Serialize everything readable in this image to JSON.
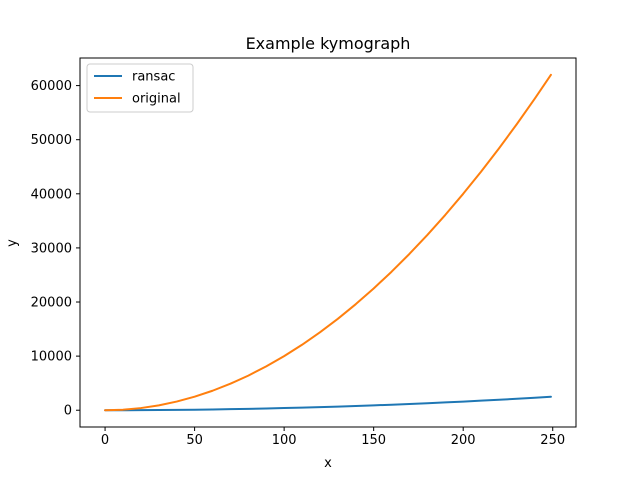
{
  "chart_data": {
    "type": "line",
    "title": "Example kymograph",
    "xlabel": "x",
    "ylabel": "y",
    "xlim": [
      -14,
      263
    ],
    "ylim": [
      -3100,
      65100
    ],
    "xticks": [
      0,
      50,
      100,
      150,
      200,
      250
    ],
    "yticks": [
      0,
      10000,
      20000,
      30000,
      40000,
      50000,
      60000
    ],
    "grid": false,
    "legend_position": "top-left",
    "x": [
      0,
      10,
      20,
      30,
      40,
      50,
      60,
      70,
      80,
      90,
      100,
      110,
      120,
      130,
      140,
      150,
      160,
      170,
      180,
      190,
      200,
      210,
      220,
      230,
      240,
      249
    ],
    "series": [
      {
        "name": "ransac",
        "color": "#1f77b4",
        "values": [
          0,
          4,
          16,
          36,
          64,
          100,
          144,
          196,
          256,
          324,
          400,
          484,
          576,
          676,
          784,
          900,
          1024,
          1156,
          1296,
          1444,
          1600,
          1764,
          1936,
          2116,
          2304,
          2480
        ]
      },
      {
        "name": "original",
        "color": "#ff7f0e",
        "values": [
          0,
          100,
          400,
          900,
          1600,
          2500,
          3600,
          4900,
          6400,
          8100,
          10000,
          12100,
          14400,
          16900,
          19600,
          22500,
          25600,
          28900,
          32400,
          36100,
          40000,
          44100,
          48400,
          52900,
          57600,
          62001
        ]
      }
    ]
  }
}
